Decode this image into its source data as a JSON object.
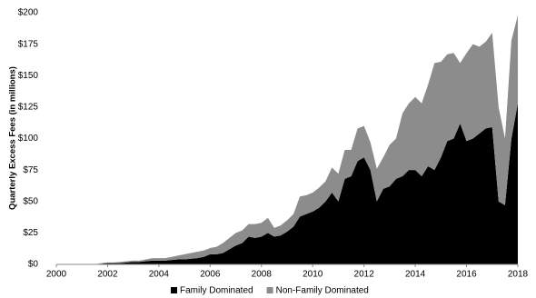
{
  "chart_data": {
    "type": "stacked-area",
    "y_label": "Quarterly Excess Fees (in millions)",
    "x": [
      2000,
      2000.25,
      2000.5,
      2000.75,
      2001,
      2001.25,
      2001.5,
      2001.75,
      2002,
      2002.25,
      2002.5,
      2002.75,
      2003,
      2003.25,
      2003.5,
      2003.75,
      2004,
      2004.25,
      2004.5,
      2004.75,
      2005,
      2005.25,
      2005.5,
      2005.75,
      2006,
      2006.25,
      2006.5,
      2006.75,
      2007,
      2007.25,
      2007.5,
      2007.75,
      2008,
      2008.25,
      2008.5,
      2008.75,
      2009,
      2009.25,
      2009.5,
      2009.75,
      2010,
      2010.25,
      2010.5,
      2010.75,
      2011,
      2011.25,
      2011.5,
      2011.75,
      2012,
      2012.25,
      2012.5,
      2012.75,
      2013,
      2013.25,
      2013.5,
      2013.75,
      2014,
      2014.25,
      2014.5,
      2014.75,
      2015,
      2015.25,
      2015.5,
      2015.75,
      2016,
      2016.25,
      2016.5,
      2016.75,
      2017,
      2017.25,
      2017.5,
      2017.75,
      2018
    ],
    "series": [
      {
        "name": "Family Dominated",
        "color": "#000000",
        "values": [
          0,
          0,
          0,
          0,
          0,
          0,
          0,
          0.5,
          1,
          1,
          1,
          1.5,
          2,
          2,
          2.5,
          3,
          3,
          3,
          3.5,
          4,
          4,
          4.5,
          5,
          6,
          8,
          8,
          9,
          12,
          15,
          17,
          22,
          21,
          22,
          25,
          22,
          23,
          26,
          30,
          38,
          40,
          42,
          45,
          50,
          57,
          50,
          68,
          70,
          82,
          85,
          75,
          50,
          60,
          62,
          68,
          70,
          75,
          75,
          70,
          78,
          75,
          85,
          98,
          100,
          112,
          98,
          100,
          104,
          108,
          109,
          50,
          47,
          100,
          128
        ]
      },
      {
        "name": "Non-Family Dominated",
        "color": "#8c8c8c",
        "values": [
          0,
          0,
          0,
          0,
          0,
          0,
          0,
          0.5,
          0.5,
          0.5,
          1,
          1,
          1,
          1,
          1.5,
          2,
          2,
          2,
          2.5,
          3,
          4,
          4.5,
          5,
          5,
          5,
          6,
          8,
          9,
          10,
          10,
          10,
          11,
          11,
          12,
          7,
          8,
          9,
          10,
          16,
          15,
          15,
          16,
          16,
          20,
          22,
          23,
          21,
          26,
          25,
          22,
          26,
          25,
          33,
          32,
          50,
          53,
          58,
          58,
          65,
          85,
          76,
          69,
          68,
          48,
          70,
          75,
          69,
          69,
          75,
          75,
          53,
          78,
          70
        ]
      }
    ],
    "xlim": [
      2000,
      2018
    ],
    "xticks": [
      2000,
      2002,
      2004,
      2006,
      2008,
      2010,
      2012,
      2014,
      2016,
      2018
    ],
    "ylim": [
      0,
      200
    ],
    "yticks": [
      {
        "value": 0,
        "label": "$0"
      },
      {
        "value": 25,
        "label": "$25"
      },
      {
        "value": 50,
        "label": "$50"
      },
      {
        "value": 75,
        "label": "$75"
      },
      {
        "value": 100,
        "label": "$100"
      },
      {
        "value": 125,
        "label": "$125"
      },
      {
        "value": 150,
        "label": "$150"
      },
      {
        "value": 175,
        "label": "$175"
      },
      {
        "value": 200,
        "label": "$200"
      }
    ],
    "grid": false,
    "legend": "bottom"
  }
}
